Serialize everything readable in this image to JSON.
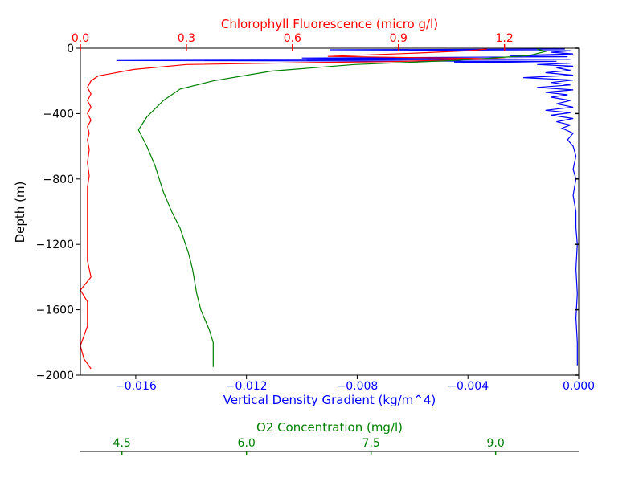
{
  "chart_data": {
    "type": "line",
    "ylabel": "Depth (m)",
    "ylim": [
      -2000,
      0
    ],
    "yticks": [
      0,
      -400,
      -800,
      -1200,
      -1600,
      -2000
    ],
    "ytick_labels": [
      "0",
      "−400",
      "−800",
      "−1200",
      "−1600",
      "−2000"
    ],
    "grid": false,
    "axes": {
      "density": {
        "label": "Vertical Density Gradient (kg/m^4)",
        "color": "#0000ff",
        "position": "bottom",
        "xlim": [
          -0.018,
          0.0
        ],
        "ticks": [
          -0.016,
          -0.012,
          -0.008,
          -0.004,
          0.0
        ],
        "tick_labels": [
          "−0.016",
          "−0.012",
          "−0.008",
          "−0.004",
          "0.000"
        ]
      },
      "chlorophyll": {
        "label": "Chlorophyll Fluorescence (micro g/l)",
        "color": "#ff0000",
        "position": "top",
        "xlim": [
          0.0,
          1.41
        ],
        "ticks": [
          0.0,
          0.3,
          0.6,
          0.9,
          1.2
        ],
        "tick_labels": [
          "0.0",
          "0.3",
          "0.6",
          "0.9",
          "1.2"
        ]
      },
      "oxygen": {
        "label": "O2 Concentration (mg/l)",
        "color": "#008000",
        "position": "bottom-offset",
        "xlim": [
          4.0,
          10.0
        ],
        "ticks": [
          4.5,
          6.0,
          7.5,
          9.0
        ],
        "tick_labels": [
          "4.5",
          "6.0",
          "7.5",
          "9.0"
        ]
      }
    },
    "series": [
      {
        "axis": "density",
        "color": "#0000ff",
        "points": [
          [
            -0.0005,
            -5
          ],
          [
            -0.009,
            -10
          ],
          [
            -0.0003,
            -15
          ],
          [
            -0.001,
            -25
          ],
          [
            -0.0002,
            -35
          ],
          [
            -0.0025,
            -45
          ],
          [
            -0.0004,
            -52
          ],
          [
            -0.01,
            -60
          ],
          [
            -0.0003,
            -68
          ],
          [
            -0.0167,
            -75
          ],
          [
            -0.0008,
            -80
          ],
          [
            -0.0045,
            -85
          ],
          [
            -0.0003,
            -92
          ],
          [
            -0.0015,
            -100
          ],
          [
            -0.0002,
            -110
          ],
          [
            -0.0008,
            -120
          ],
          [
            -0.0003,
            -135
          ],
          [
            -0.0012,
            -150
          ],
          [
            -0.0002,
            -165
          ],
          [
            -0.002,
            -180
          ],
          [
            -0.0002,
            -195
          ],
          [
            -0.001,
            -210
          ],
          [
            -0.0003,
            -225
          ],
          [
            -0.0015,
            -240
          ],
          [
            -0.0002,
            -255
          ],
          [
            -0.0012,
            -270
          ],
          [
            -0.0004,
            -285
          ],
          [
            -0.001,
            -300
          ],
          [
            -0.0003,
            -320
          ],
          [
            -0.0008,
            -340
          ],
          [
            -0.0002,
            -360
          ],
          [
            -0.0012,
            -380
          ],
          [
            -0.0003,
            -395
          ],
          [
            -0.001,
            -410
          ],
          [
            -0.0002,
            -430
          ],
          [
            -0.0008,
            -450
          ],
          [
            -0.0003,
            -470
          ],
          [
            -0.0006,
            -490
          ],
          [
            -0.0002,
            -520
          ],
          [
            -0.0004,
            -560
          ],
          [
            -0.0002,
            -600
          ],
          [
            -0.0001,
            -660
          ],
          [
            -0.0002,
            -740
          ],
          [
            -0.0001,
            -800
          ],
          [
            -0.0002,
            -900
          ],
          [
            -0.0001,
            -1000
          ],
          [
            -0.0001,
            -1100
          ],
          [
            -5e-05,
            -1200
          ],
          [
            -0.0001,
            -1350
          ],
          [
            -5e-05,
            -1500
          ],
          [
            -0.0001,
            -1650
          ],
          [
            -5e-05,
            -1800
          ],
          [
            -5e-05,
            -1940
          ]
        ]
      },
      {
        "axis": "chlorophyll",
        "color": "#ff0000",
        "points": [
          [
            1.15,
            -5
          ],
          [
            1.1,
            -15
          ],
          [
            0.95,
            -30
          ],
          [
            0.7,
            -50
          ],
          [
            1.2,
            -65
          ],
          [
            1.0,
            -75
          ],
          [
            0.88,
            -82
          ],
          [
            0.65,
            -88
          ],
          [
            0.3,
            -100
          ],
          [
            0.15,
            -130
          ],
          [
            0.05,
            -170
          ],
          [
            0.03,
            -200
          ],
          [
            0.02,
            -240
          ],
          [
            0.03,
            -280
          ],
          [
            0.02,
            -320
          ],
          [
            0.03,
            -360
          ],
          [
            0.02,
            -400
          ],
          [
            0.03,
            -440
          ],
          [
            0.02,
            -480
          ],
          [
            0.025,
            -520
          ],
          [
            0.02,
            -560
          ],
          [
            0.025,
            -620
          ],
          [
            0.02,
            -700
          ],
          [
            0.025,
            -780
          ],
          [
            0.02,
            -850
          ],
          [
            0.02,
            -900
          ],
          [
            0.02,
            -1100
          ],
          [
            0.02,
            -1300
          ],
          [
            0.03,
            -1400
          ],
          [
            0.0,
            -1480
          ],
          [
            0.02,
            -1550
          ],
          [
            0.02,
            -1700
          ],
          [
            0.0,
            -1820
          ],
          [
            0.01,
            -1900
          ],
          [
            0.03,
            -1960
          ]
        ]
      },
      {
        "axis": "oxygen",
        "color": "#008000",
        "points": [
          [
            9.5,
            -5
          ],
          [
            9.6,
            -20
          ],
          [
            9.4,
            -45
          ],
          [
            8.5,
            -75
          ],
          [
            7.3,
            -100
          ],
          [
            6.3,
            -140
          ],
          [
            5.6,
            -200
          ],
          [
            5.2,
            -250
          ],
          [
            5.0,
            -320
          ],
          [
            4.8,
            -420
          ],
          [
            4.7,
            -500
          ],
          [
            4.8,
            -600
          ],
          [
            4.9,
            -720
          ],
          [
            5.0,
            -880
          ],
          [
            5.1,
            -1000
          ],
          [
            5.2,
            -1100
          ],
          [
            5.3,
            -1250
          ],
          [
            5.35,
            -1350
          ],
          [
            5.4,
            -1500
          ],
          [
            5.45,
            -1600
          ],
          [
            5.55,
            -1720
          ],
          [
            5.6,
            -1800
          ],
          [
            5.6,
            -1950
          ]
        ]
      }
    ]
  }
}
